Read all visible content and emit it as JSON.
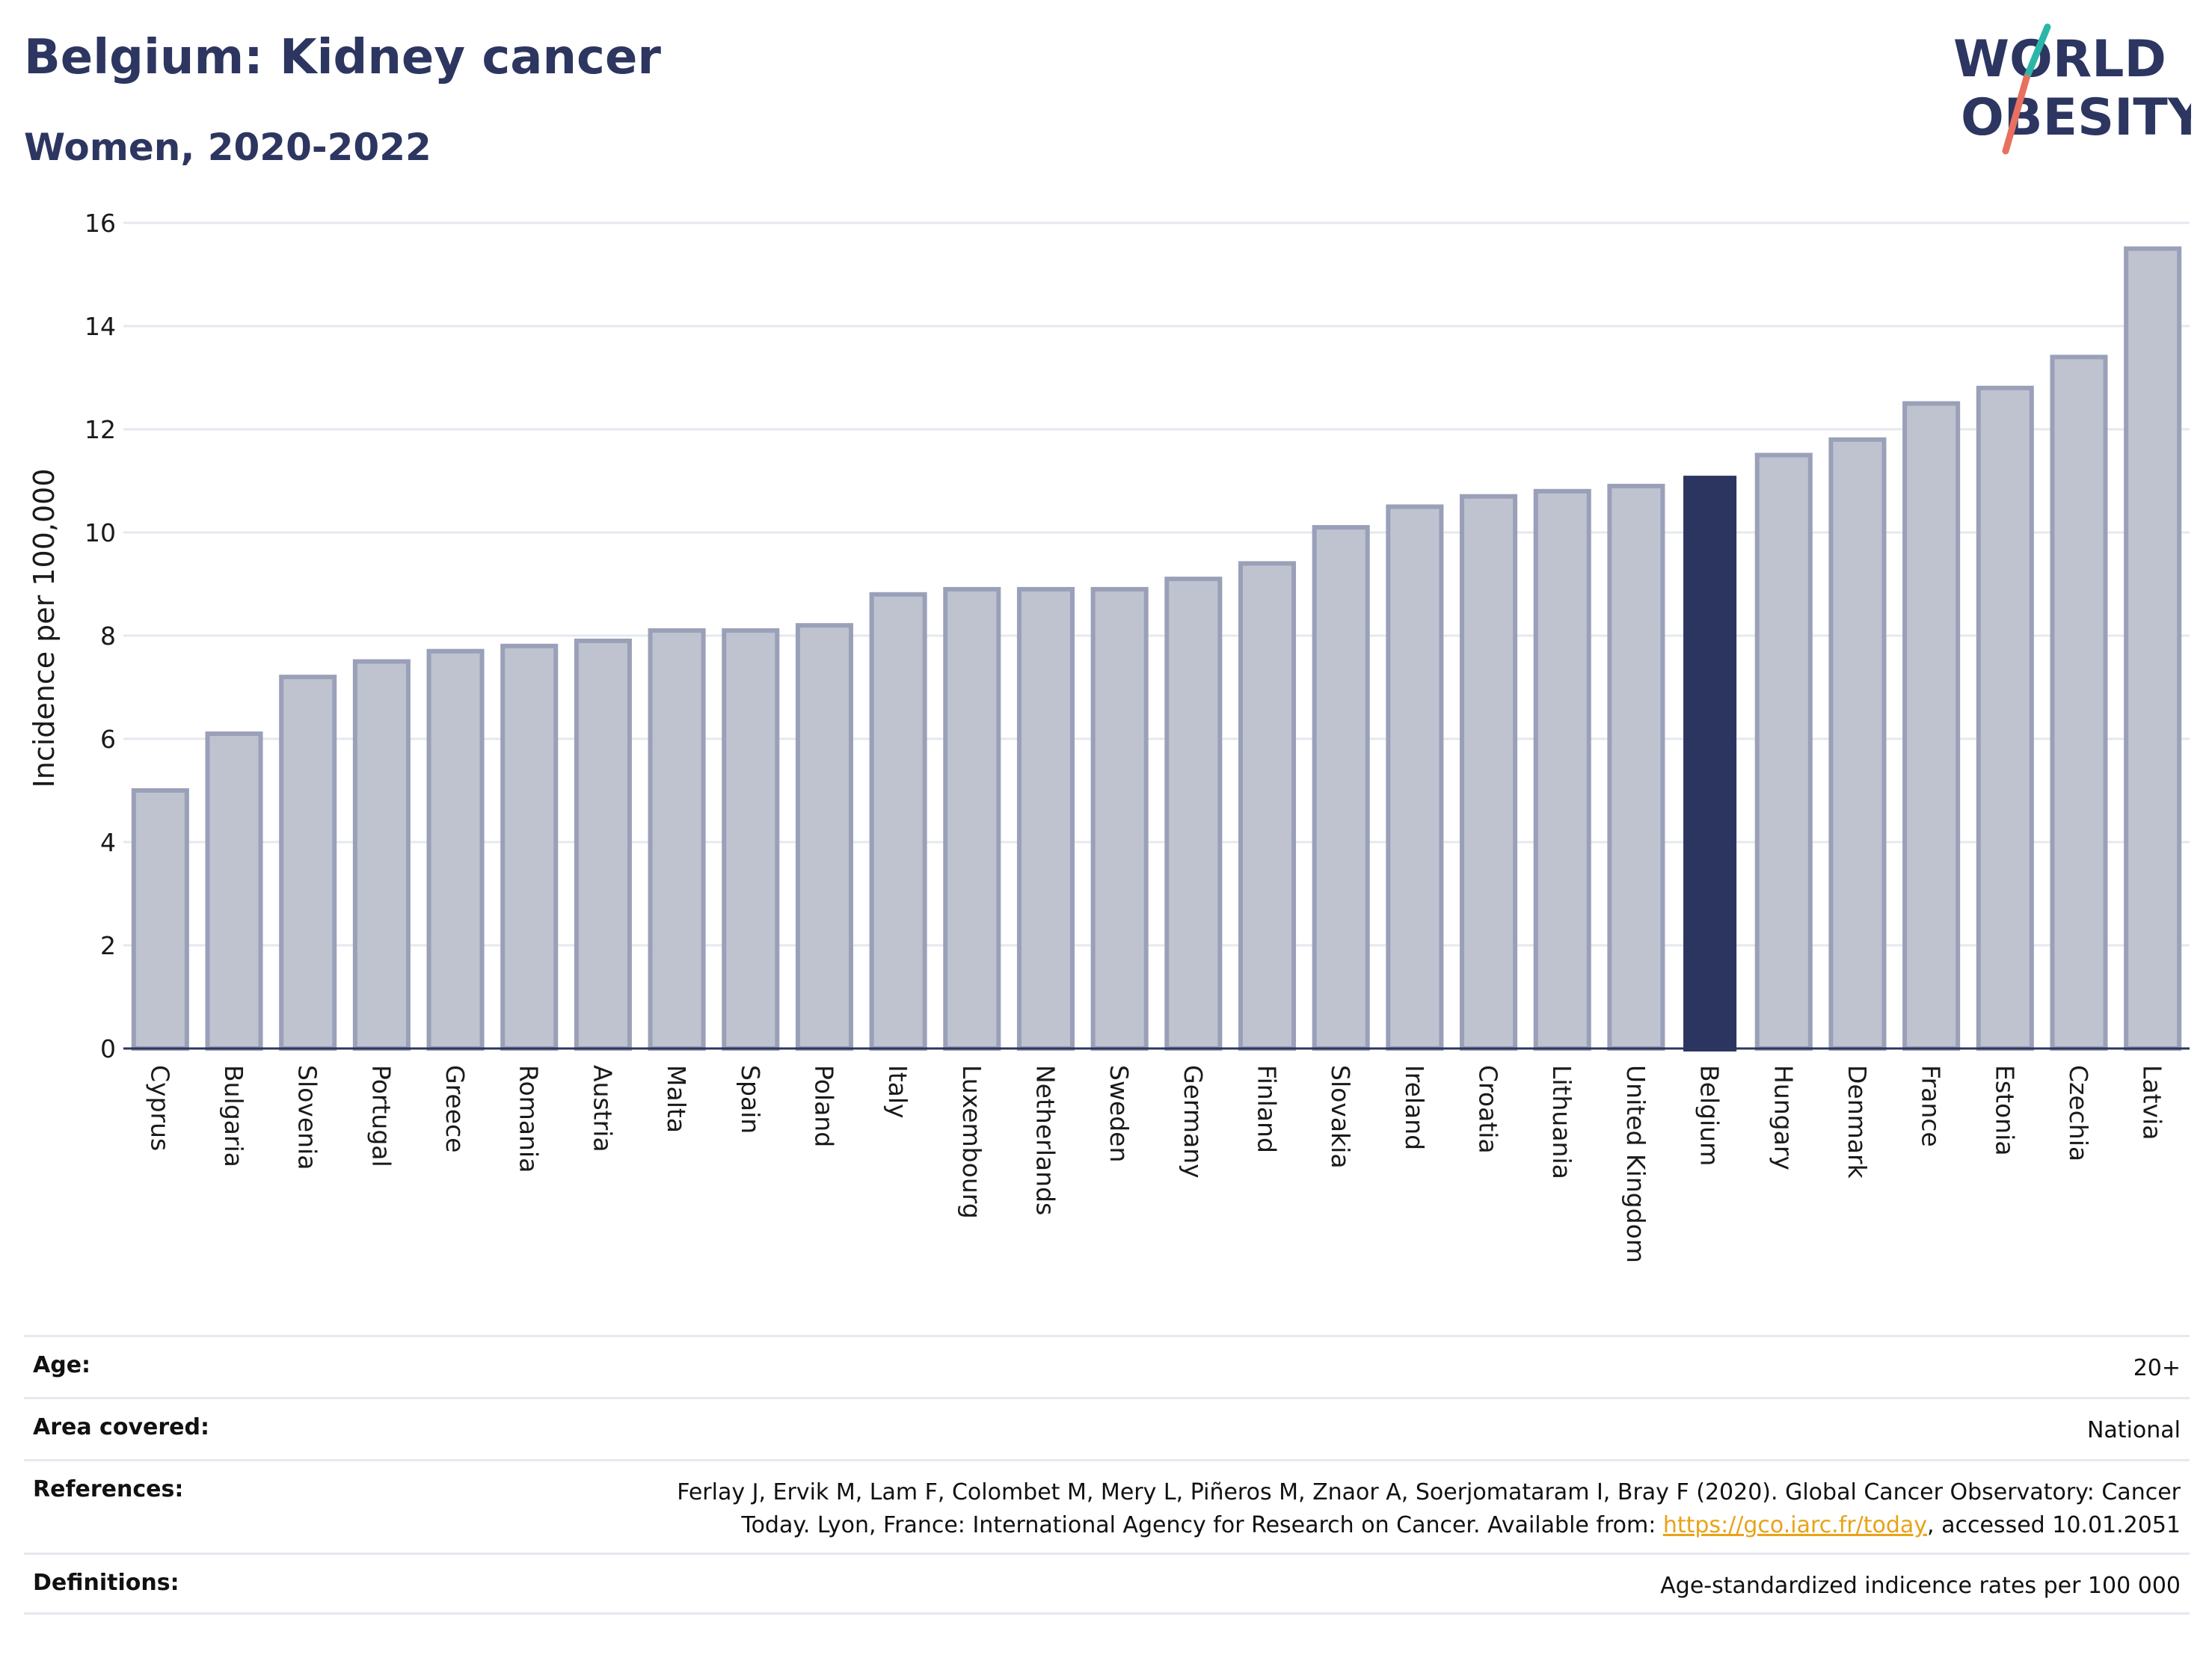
{
  "header": {
    "title": "Belgium: Kidney cancer",
    "subtitle": "Women, 2020-2022"
  },
  "logo": {
    "line1": "WORLD",
    "line2": "OBESITY",
    "colors": {
      "text": "#2c3660",
      "slash_red": "#e8705f",
      "slash_teal": "#2bb6a8"
    }
  },
  "colors": {
    "bar": "#bfc3d0",
    "bar_edge": "#9aa0b8",
    "highlight": "#2b3560",
    "grid": "#e6e8ef",
    "axis": "#2c3660"
  },
  "chart_data": {
    "type": "bar",
    "ylabel": "Incidence per 100,000",
    "ylim": [
      0,
      16
    ],
    "yticks": [
      0,
      2,
      4,
      6,
      8,
      10,
      12,
      14,
      16
    ],
    "grid": true,
    "highlight": "Belgium",
    "categories": [
      "Cyprus",
      "Bulgaria",
      "Slovenia",
      "Portugal",
      "Greece",
      "Romania",
      "Austria",
      "Malta",
      "Spain",
      "Poland",
      "Italy",
      "Luxembourg",
      "Netherlands",
      "Sweden",
      "Germany",
      "Finland",
      "Slovakia",
      "Ireland",
      "Croatia",
      "Lithuania",
      "United Kingdom",
      "Belgium",
      "Hungary",
      "Denmark",
      "France",
      "Estonia",
      "Czechia",
      "Latvia"
    ],
    "values": [
      5.0,
      6.1,
      7.2,
      7.5,
      7.7,
      7.8,
      7.9,
      8.1,
      8.1,
      8.2,
      8.8,
      8.9,
      8.9,
      8.9,
      9.1,
      9.4,
      10.1,
      10.5,
      10.7,
      10.8,
      10.9,
      11.1,
      11.5,
      11.8,
      12.5,
      12.8,
      13.4,
      15.5
    ]
  },
  "info": {
    "age_label": "Age:",
    "age_value": "20+",
    "area_label": "Area covered:",
    "area_value": "National",
    "references_label": "References:",
    "references_line1": "Ferlay J, Ervik M, Lam F, Colombet M, Mery L, Piñeros M, Znaor A, Soerjomataram I, Bray F (2020). Global Cancer Observatory: Cancer",
    "references_line2_pre": "Today. Lyon, France: International Agency for Research on Cancer. Available from: ",
    "references_link": "https://gco.iarc.fr/today",
    "references_line2_post": ", accessed 10.01.2051",
    "definitions_label": "Definitions:",
    "definitions_value": "Age-standardized indicence rates per 100 000"
  }
}
